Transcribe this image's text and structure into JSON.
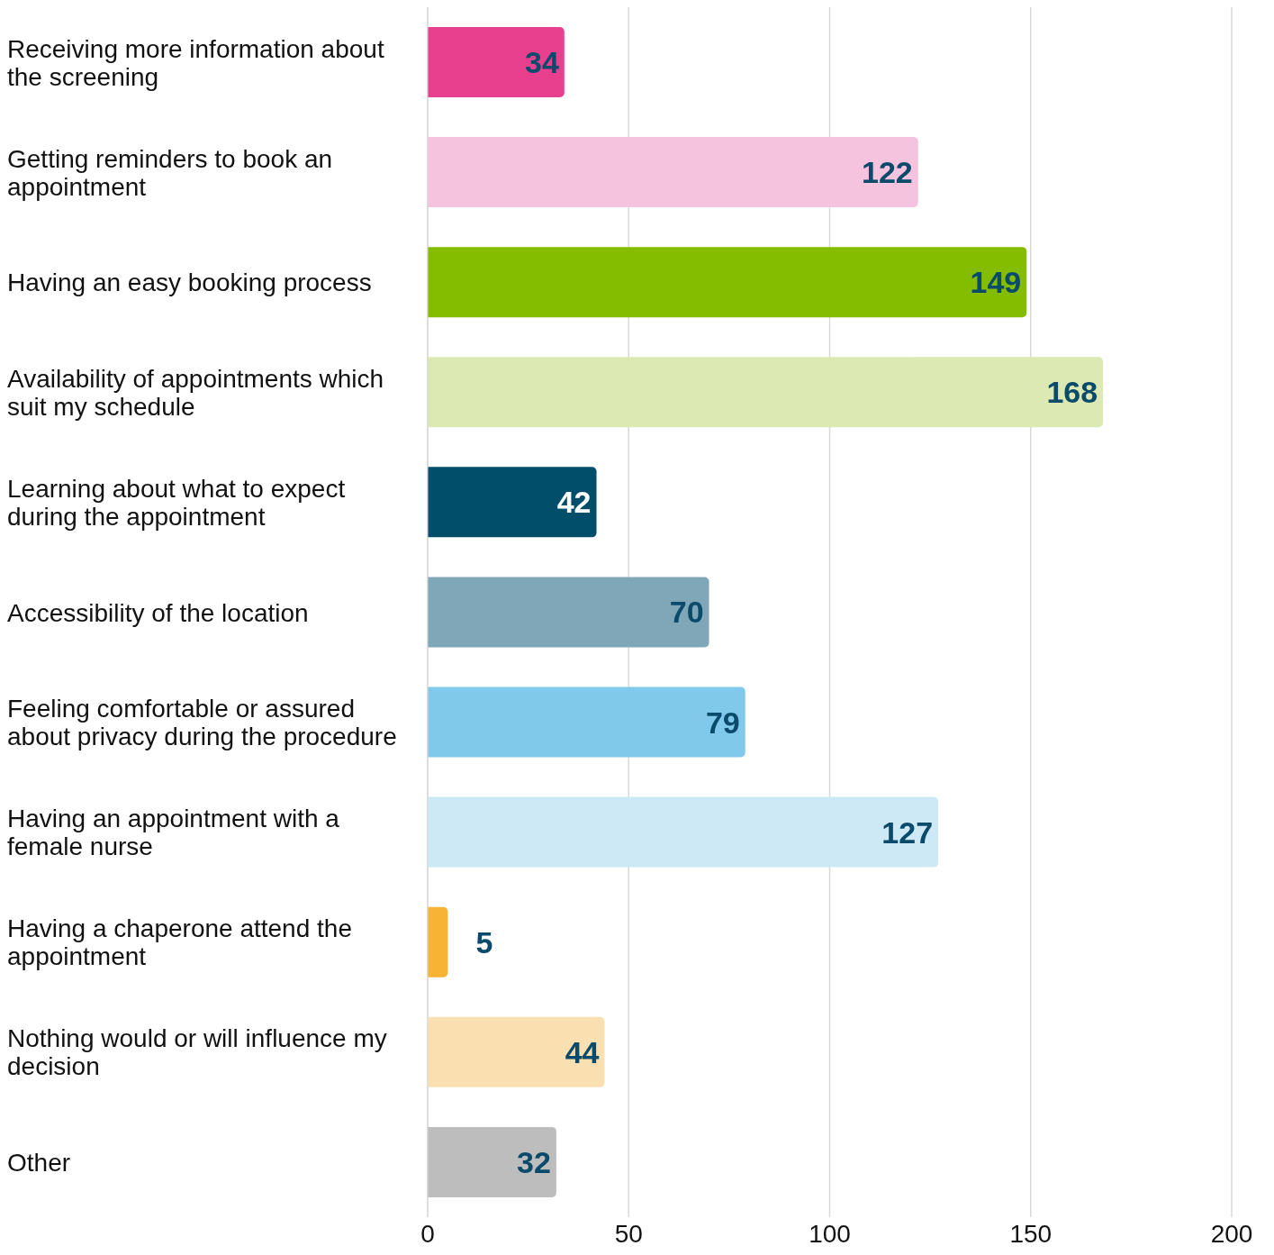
{
  "chart_data": {
    "type": "bar",
    "orientation": "horizontal",
    "categories": [
      "Receiving more information about the screening",
      "Getting reminders to book an appointment",
      "Having an easy booking process",
      "Availability of appointments which suit my schedule",
      "Learning about what to expect during the appointment",
      "Accessibility of the location",
      "Feeling comfortable or assured about privacy during the procedure",
      "Having an appointment with a female nurse",
      "Having a chaperone attend the appointment",
      "Nothing would or will influence my decision",
      "Other"
    ],
    "values": [
      34,
      122,
      149,
      168,
      42,
      70,
      79,
      127,
      5,
      44,
      32
    ],
    "colors": [
      "#e8408f",
      "#f6c3df",
      "#84bd00",
      "#dce9b3",
      "#004e6a",
      "#80a7b7",
      "#80c9ea",
      "#cde9f6",
      "#f7b334",
      "#fae0b0",
      "#bdbdbd"
    ],
    "xlim": [
      0,
      200
    ],
    "xticks": [
      0,
      50,
      100,
      150,
      200
    ],
    "grid": "x",
    "data_labels": true
  }
}
